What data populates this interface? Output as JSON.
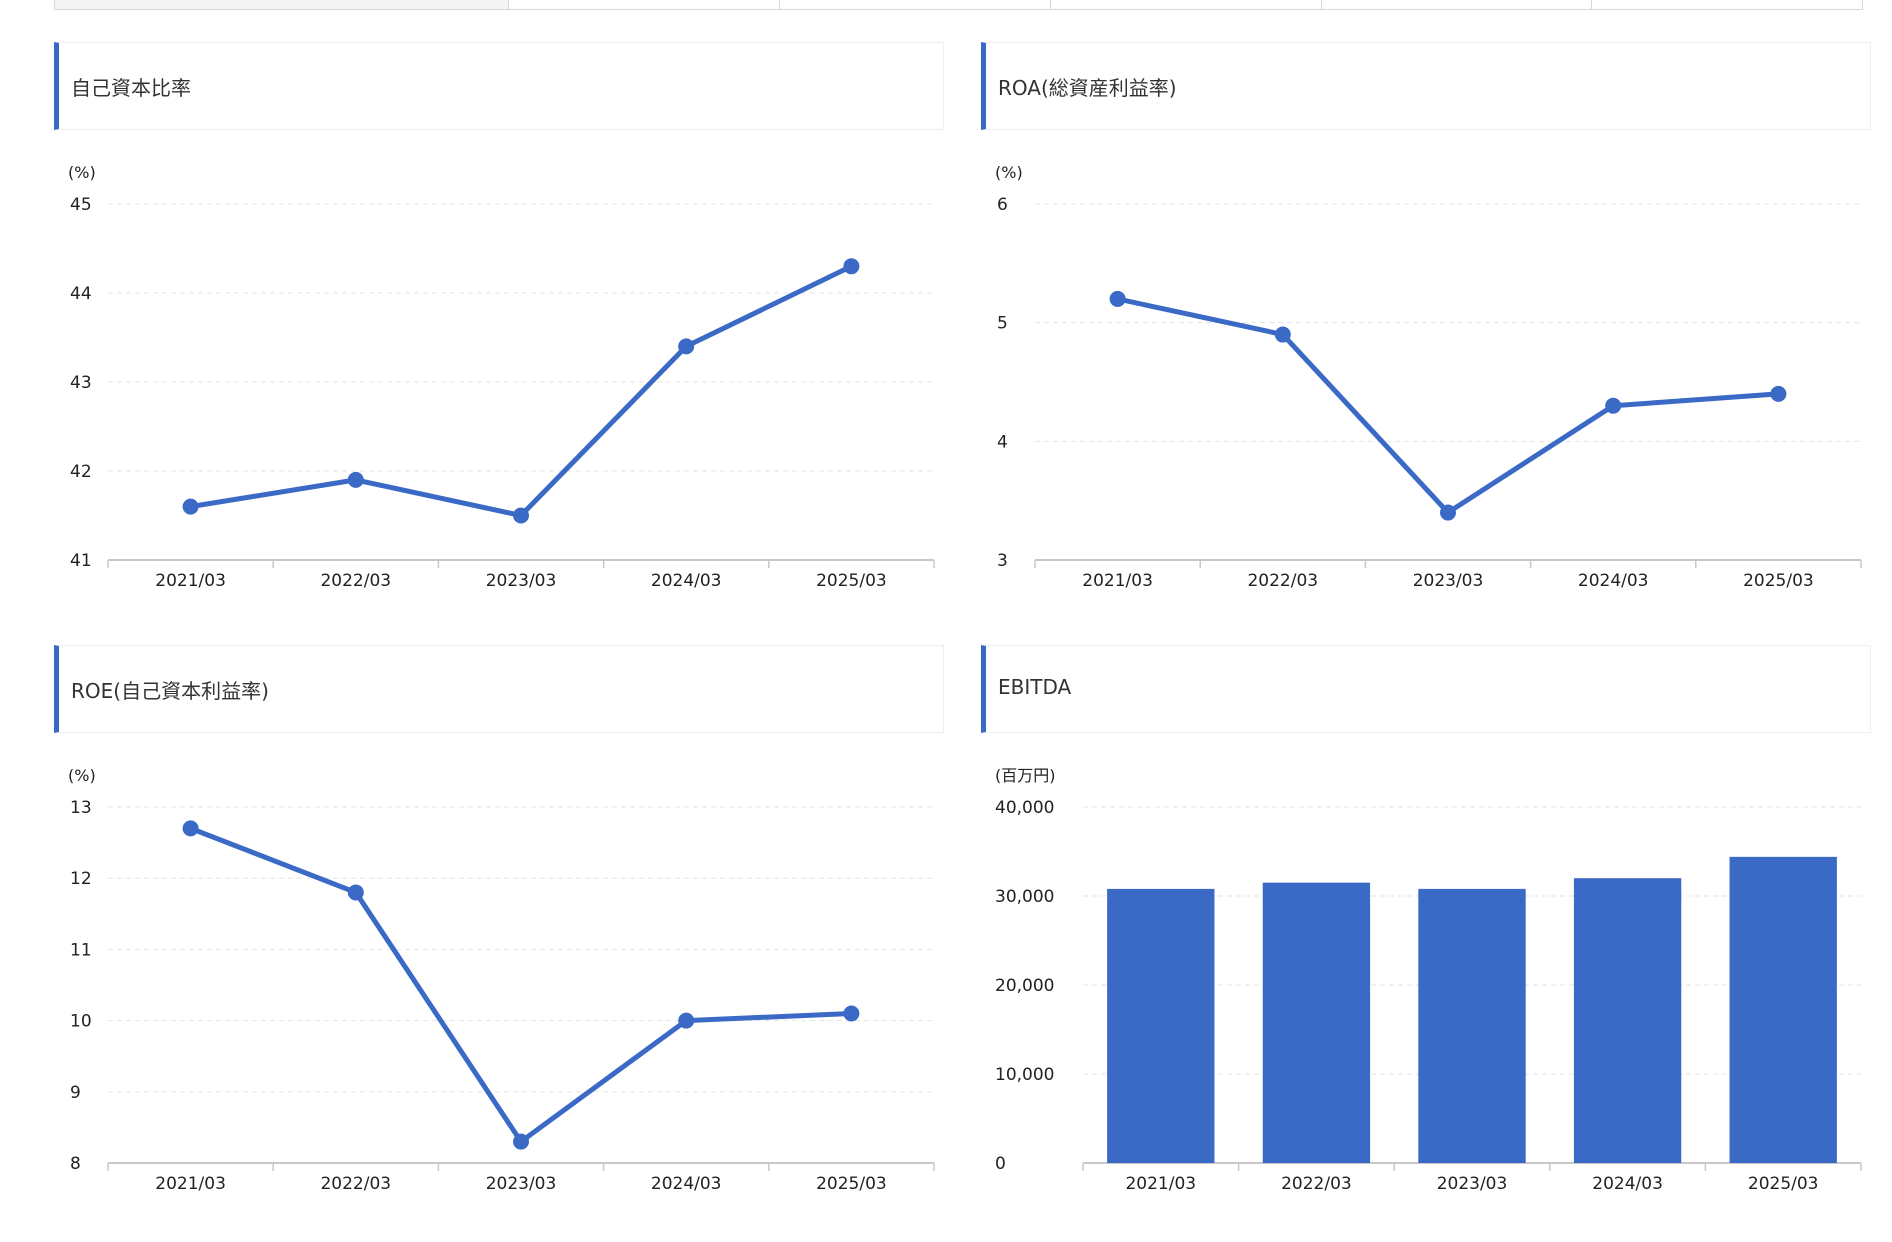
{
  "tabs": [
    "",
    "",
    "",
    "",
    "",
    ""
  ],
  "chart_data": [
    {
      "type": "line",
      "title": "自己資本比率",
      "unit": "(%)",
      "categories": [
        "2021/03",
        "2022/03",
        "2023/03",
        "2024/03",
        "2025/03"
      ],
      "values": [
        41.6,
        41.9,
        41.5,
        43.4,
        44.3
      ],
      "ylim": [
        41,
        45
      ],
      "yticks": [
        41,
        42,
        43,
        44,
        45
      ],
      "ytick_labels": [
        "41",
        "42",
        "43",
        "44",
        "45"
      ],
      "grid": true,
      "color": "#3b69c6"
    },
    {
      "type": "line",
      "title": "ROA(総資産利益率)",
      "unit": "(%)",
      "categories": [
        "2021/03",
        "2022/03",
        "2023/03",
        "2024/03",
        "2025/03"
      ],
      "values": [
        5.2,
        4.9,
        3.4,
        4.3,
        4.4
      ],
      "ylim": [
        3,
        6
      ],
      "yticks": [
        3,
        4,
        5,
        6
      ],
      "ytick_labels": [
        "3",
        "4",
        "5",
        "6"
      ],
      "grid": true,
      "color": "#3b69c6"
    },
    {
      "type": "line",
      "title": "ROE(自己資本利益率)",
      "unit": "(%)",
      "categories": [
        "2021/03",
        "2022/03",
        "2023/03",
        "2024/03",
        "2025/03"
      ],
      "values": [
        12.7,
        11.8,
        8.3,
        10.0,
        10.1
      ],
      "ylim": [
        8,
        13
      ],
      "yticks": [
        8,
        9,
        10,
        11,
        12,
        13
      ],
      "ytick_labels": [
        "8",
        "9",
        "10",
        "11",
        "12",
        "13"
      ],
      "grid": true,
      "color": "#3b69c6"
    },
    {
      "type": "bar",
      "title": "EBITDA",
      "unit": "(百万円)",
      "categories": [
        "2021/03",
        "2022/03",
        "2023/03",
        "2024/03",
        "2025/03"
      ],
      "values": [
        30800,
        31500,
        30800,
        32000,
        34400
      ],
      "ylim": [
        0,
        40000
      ],
      "yticks": [
        0,
        10000,
        20000,
        30000,
        40000
      ],
      "ytick_labels": [
        "0",
        "10,000",
        "20,000",
        "30,000",
        "40,000"
      ],
      "grid": true,
      "color": "#3b69c6"
    }
  ]
}
